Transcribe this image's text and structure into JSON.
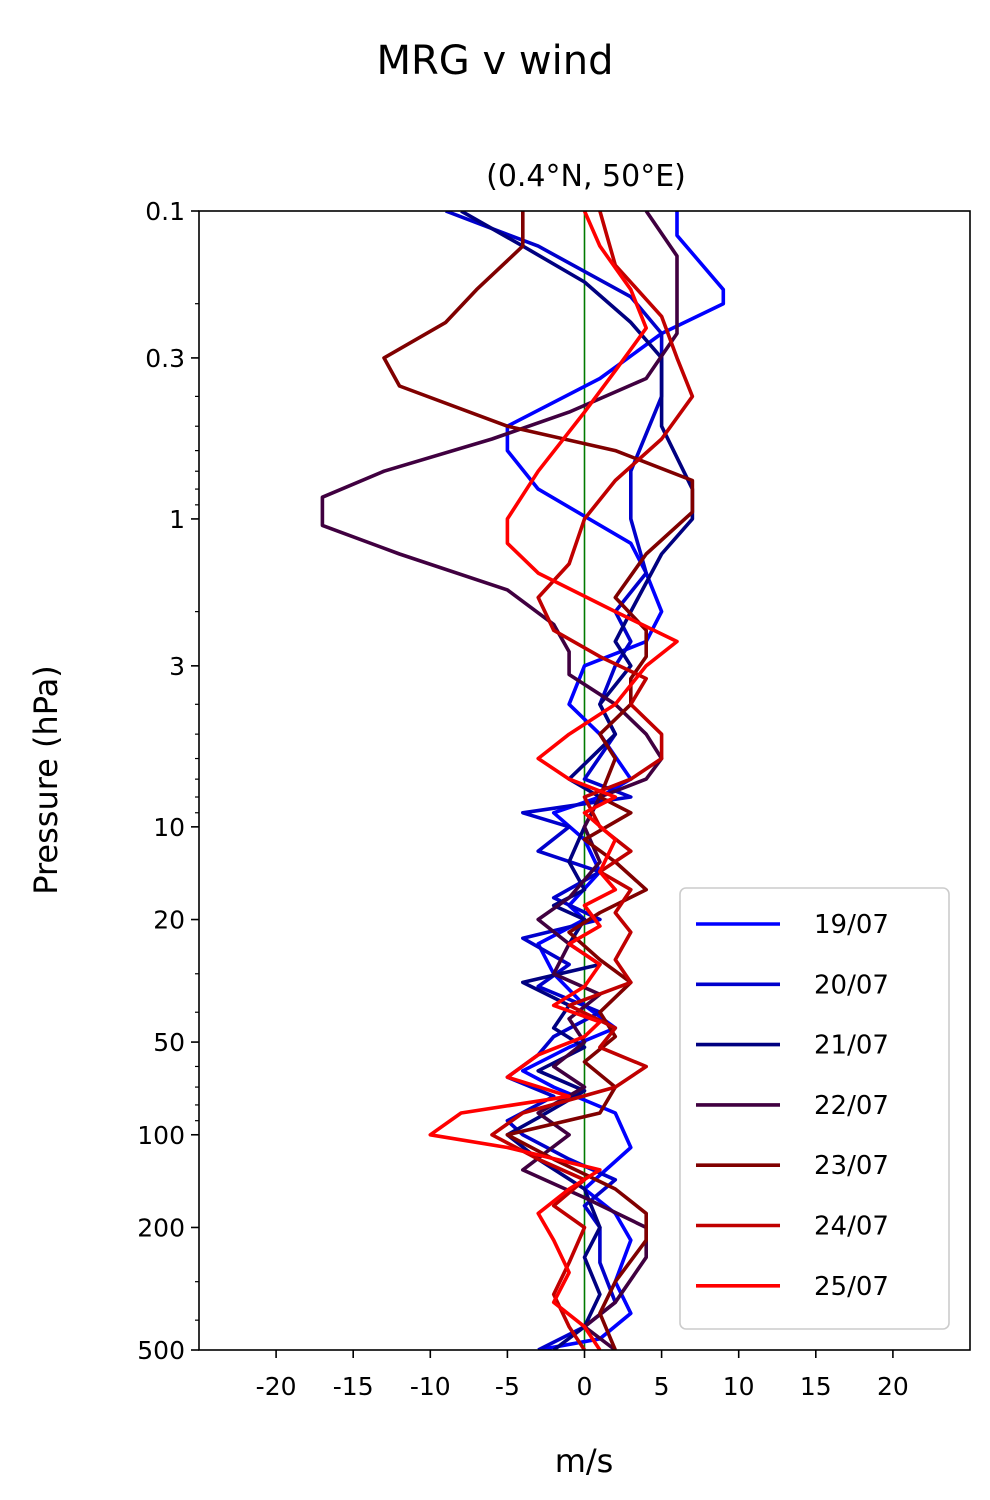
{
  "chart_data": {
    "type": "line",
    "title": "MRG v wind",
    "subtitle": "(0.4°N, 50°E)",
    "xlabel": "m/s",
    "ylabel": "Pressure (hPa)",
    "xlim": [
      -25,
      25
    ],
    "ylim": [
      500,
      0.1
    ],
    "yscale": "log",
    "xticks": [
      -20,
      -15,
      -10,
      -5,
      0,
      5,
      10,
      15,
      20
    ],
    "xtick_labels": [
      "-20",
      "-15",
      "-10",
      "-5",
      "0",
      "5",
      "10",
      "15",
      "20"
    ],
    "yticks": [
      0.1,
      0.3,
      1,
      3,
      10,
      20,
      50,
      100,
      200,
      500
    ],
    "ytick_labels": [
      "0.1",
      "0.3",
      "1",
      "3",
      "10",
      "20",
      "50",
      "100",
      "200",
      "500"
    ],
    "zero_line_color": "#007a00",
    "legend_position": "lower right",
    "series": [
      {
        "name": "19/07",
        "color": "#0000ff",
        "values": [
          [
            6,
            0.1
          ],
          [
            6,
            0.12
          ],
          [
            9,
            0.18
          ],
          [
            9,
            0.2
          ],
          [
            5,
            0.25
          ],
          [
            1,
            0.35
          ],
          [
            -5,
            0.5
          ],
          [
            -5,
            0.6
          ],
          [
            -3,
            0.8
          ],
          [
            3,
            1.2
          ],
          [
            4,
            1.5
          ],
          [
            5,
            2
          ],
          [
            4,
            2.5
          ],
          [
            0,
            3
          ],
          [
            -1,
            4
          ],
          [
            1,
            5
          ],
          [
            3,
            7
          ],
          [
            1,
            8
          ],
          [
            -2,
            9
          ],
          [
            0,
            11
          ],
          [
            1,
            14
          ],
          [
            -1,
            18
          ],
          [
            0,
            20
          ],
          [
            -3,
            24
          ],
          [
            -2,
            30
          ],
          [
            0,
            38
          ],
          [
            2,
            45
          ],
          [
            -1,
            52
          ],
          [
            -4,
            62
          ],
          [
            -2,
            70
          ],
          [
            2,
            85
          ],
          [
            3,
            110
          ],
          [
            0,
            150
          ],
          [
            2,
            180
          ],
          [
            3,
            220
          ],
          [
            2,
            300
          ],
          [
            3,
            380
          ],
          [
            1,
            460
          ],
          [
            -3,
            500
          ]
        ]
      },
      {
        "name": "20/07",
        "color": "#0000cc",
        "values": [
          [
            -9,
            0.1
          ],
          [
            -3,
            0.13
          ],
          [
            3,
            0.19
          ],
          [
            5,
            0.25
          ],
          [
            5,
            0.4
          ],
          [
            3,
            0.7
          ],
          [
            3,
            1
          ],
          [
            4,
            1.5
          ],
          [
            2,
            2
          ],
          [
            3,
            2.5
          ],
          [
            2,
            3
          ],
          [
            1,
            4
          ],
          [
            2,
            5
          ],
          [
            0,
            7
          ],
          [
            3,
            8
          ],
          [
            -4,
            9
          ],
          [
            -1,
            10
          ],
          [
            -3,
            12
          ],
          [
            1,
            14
          ],
          [
            -2,
            17
          ],
          [
            1,
            20
          ],
          [
            -4,
            23
          ],
          [
            -1,
            28
          ],
          [
            -3,
            33
          ],
          [
            1,
            40
          ],
          [
            -2,
            48
          ],
          [
            -3,
            55
          ],
          [
            -5,
            65
          ],
          [
            -2,
            75
          ],
          [
            -5,
            90
          ],
          [
            -4,
            100
          ],
          [
            -1,
            120
          ],
          [
            2,
            140
          ],
          [
            0,
            170
          ],
          [
            1,
            200
          ],
          [
            1,
            260
          ],
          [
            2,
            350
          ],
          [
            0,
            420
          ],
          [
            -3,
            500
          ]
        ]
      },
      {
        "name": "21/07",
        "color": "#000080",
        "values": [
          [
            -8,
            0.1
          ],
          [
            -4,
            0.13
          ],
          [
            0,
            0.17
          ],
          [
            3,
            0.23
          ],
          [
            5,
            0.3
          ],
          [
            5,
            0.5
          ],
          [
            7,
            0.8
          ],
          [
            7,
            1
          ],
          [
            5,
            1.3
          ],
          [
            3,
            2
          ],
          [
            2,
            2.5
          ],
          [
            3,
            3
          ],
          [
            1,
            4
          ],
          [
            2,
            5
          ],
          [
            -1,
            7
          ],
          [
            1,
            8
          ],
          [
            0,
            10
          ],
          [
            -1,
            13
          ],
          [
            0,
            16
          ],
          [
            -2,
            18
          ],
          [
            0,
            20
          ],
          [
            -1,
            24
          ],
          [
            1,
            28
          ],
          [
            -4,
            32
          ],
          [
            -1,
            38
          ],
          [
            -2,
            45
          ],
          [
            0,
            52
          ],
          [
            -3,
            62
          ],
          [
            0,
            72
          ],
          [
            -3,
            88
          ],
          [
            -5,
            100
          ],
          [
            -3,
            120
          ],
          [
            0,
            150
          ],
          [
            1,
            200
          ],
          [
            0,
            250
          ],
          [
            1,
            330
          ],
          [
            0,
            420
          ],
          [
            -2,
            500
          ]
        ]
      },
      {
        "name": "22/07",
        "color": "#400040",
        "values": [
          [
            4,
            0.1
          ],
          [
            6,
            0.14
          ],
          [
            6,
            0.25
          ],
          [
            4,
            0.35
          ],
          [
            -1,
            0.45
          ],
          [
            -6,
            0.55
          ],
          [
            -13,
            0.7
          ],
          [
            -17,
            0.85
          ],
          [
            -17,
            1.05
          ],
          [
            -12,
            1.3
          ],
          [
            -5,
            1.7
          ],
          [
            -2,
            2.2
          ],
          [
            -1,
            2.7
          ],
          [
            -1,
            3.2
          ],
          [
            2,
            4
          ],
          [
            4,
            5
          ],
          [
            5,
            6
          ],
          [
            4,
            7
          ],
          [
            1,
            8
          ],
          [
            0,
            10
          ],
          [
            1,
            13
          ],
          [
            -1,
            17
          ],
          [
            -3,
            20
          ],
          [
            -1,
            24
          ],
          [
            -2,
            30
          ],
          [
            1,
            35
          ],
          [
            -1,
            42
          ],
          [
            0,
            50
          ],
          [
            -2,
            60
          ],
          [
            0,
            70
          ],
          [
            -3,
            85
          ],
          [
            -1,
            100
          ],
          [
            -4,
            130
          ],
          [
            0,
            160
          ],
          [
            4,
            200
          ],
          [
            4,
            250
          ],
          [
            2,
            350
          ],
          [
            0,
            420
          ],
          [
            2,
            500
          ]
        ]
      },
      {
        "name": "23/07",
        "color": "#800000",
        "values": [
          [
            -4,
            0.1
          ],
          [
            -4,
            0.13
          ],
          [
            -7,
            0.18
          ],
          [
            -9,
            0.23
          ],
          [
            -13,
            0.3
          ],
          [
            -12,
            0.37
          ],
          [
            -5,
            0.5
          ],
          [
            2,
            0.6
          ],
          [
            7,
            0.75
          ],
          [
            7,
            0.95
          ],
          [
            4,
            1.3
          ],
          [
            2,
            1.8
          ],
          [
            4,
            2.3
          ],
          [
            4,
            2.8
          ],
          [
            3,
            3.3
          ],
          [
            3,
            4
          ],
          [
            1,
            5
          ],
          [
            2,
            6
          ],
          [
            1,
            8
          ],
          [
            3,
            9
          ],
          [
            0,
            11
          ],
          [
            2,
            13
          ],
          [
            4,
            16
          ],
          [
            1,
            19
          ],
          [
            -1,
            22
          ],
          [
            1,
            27
          ],
          [
            3,
            32
          ],
          [
            1,
            40
          ],
          [
            2,
            48
          ],
          [
            0,
            58
          ],
          [
            2,
            70
          ],
          [
            1,
            85
          ],
          [
            -5,
            100
          ],
          [
            -2,
            120
          ],
          [
            2,
            150
          ],
          [
            4,
            180
          ],
          [
            4,
            220
          ],
          [
            2,
            300
          ],
          [
            1,
            380
          ],
          [
            2,
            500
          ]
        ]
      },
      {
        "name": "24/07",
        "color": "#c00000",
        "values": [
          [
            1,
            0.1
          ],
          [
            2,
            0.15
          ],
          [
            5,
            0.22
          ],
          [
            6,
            0.3
          ],
          [
            7,
            0.4
          ],
          [
            5,
            0.55
          ],
          [
            2,
            0.75
          ],
          [
            0,
            1
          ],
          [
            -1,
            1.4
          ],
          [
            -3,
            1.8
          ],
          [
            -2,
            2.3
          ],
          [
            1,
            2.8
          ],
          [
            4,
            3.3
          ],
          [
            3,
            4
          ],
          [
            5,
            5
          ],
          [
            5,
            6
          ],
          [
            3,
            7
          ],
          [
            0,
            8
          ],
          [
            1,
            10
          ],
          [
            3,
            12
          ],
          [
            1,
            14
          ],
          [
            3,
            16
          ],
          [
            2,
            19
          ],
          [
            3,
            22
          ],
          [
            2,
            27
          ],
          [
            3,
            32
          ],
          [
            -1,
            38
          ],
          [
            2,
            45
          ],
          [
            1,
            52
          ],
          [
            4,
            60
          ],
          [
            2,
            70
          ],
          [
            -4,
            85
          ],
          [
            -6,
            100
          ],
          [
            -3,
            120
          ],
          [
            0,
            140
          ],
          [
            -2,
            170
          ],
          [
            0,
            200
          ],
          [
            -1,
            260
          ],
          [
            -2,
            330
          ],
          [
            -1,
            420
          ],
          [
            0,
            500
          ]
        ]
      },
      {
        "name": "25/07",
        "color": "#ff0000",
        "values": [
          [
            0,
            0.1
          ],
          [
            1,
            0.13
          ],
          [
            3,
            0.18
          ],
          [
            4,
            0.24
          ],
          [
            2,
            0.33
          ],
          [
            0,
            0.45
          ],
          [
            -3,
            0.7
          ],
          [
            -5,
            1
          ],
          [
            -5,
            1.2
          ],
          [
            -3,
            1.5
          ],
          [
            2,
            2
          ],
          [
            6,
            2.5
          ],
          [
            4,
            3
          ],
          [
            2,
            4
          ],
          [
            -1,
            5
          ],
          [
            -3,
            6
          ],
          [
            -1,
            7
          ],
          [
            2,
            8
          ],
          [
            0,
            9
          ],
          [
            2,
            11
          ],
          [
            1,
            14
          ],
          [
            2,
            16
          ],
          [
            0,
            18
          ],
          [
            1,
            21
          ],
          [
            -1,
            24
          ],
          [
            1,
            28
          ],
          [
            0,
            33
          ],
          [
            -2,
            38
          ],
          [
            1,
            43
          ],
          [
            0,
            48
          ],
          [
            -3,
            55
          ],
          [
            -5,
            65
          ],
          [
            -1,
            75
          ],
          [
            -8,
            85
          ],
          [
            -10,
            100
          ],
          [
            -5,
            110
          ],
          [
            1,
            130
          ],
          [
            -1,
            150
          ],
          [
            -3,
            180
          ],
          [
            -2,
            220
          ],
          [
            -1,
            280
          ],
          [
            -2,
            350
          ],
          [
            0,
            420
          ],
          [
            1,
            500
          ]
        ]
      }
    ]
  }
}
